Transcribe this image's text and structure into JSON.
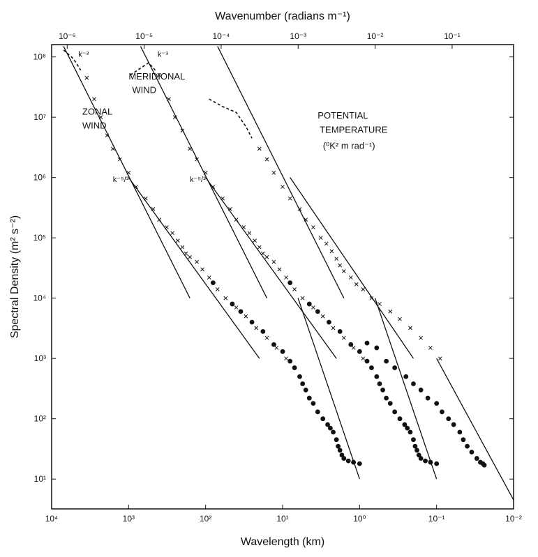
{
  "chart_data": {
    "type": "scatter",
    "xlabel": "Wavelength (km)",
    "ylabel": "Spectral Density (m² s⁻²)",
    "top_xlabel": "Wavenumber (radians m⁻¹)",
    "x_scale": "log",
    "y_scale": "log",
    "xlim": [
      10000,
      0.01
    ],
    "ylim": [
      3.2,
      160000000
    ],
    "x_ticks": [
      {
        "value": 10000,
        "label": "10⁴"
      },
      {
        "value": 1000,
        "label": "10³"
      },
      {
        "value": 100,
        "label": "10²"
      },
      {
        "value": 10,
        "label": "10¹"
      },
      {
        "value": 1,
        "label": "10⁰"
      },
      {
        "value": 0.1,
        "label": "10⁻¹"
      },
      {
        "value": 0.01,
        "label": "10⁻²"
      }
    ],
    "top_ticks": [
      {
        "value": 1e-06,
        "label": "10⁻⁶"
      },
      {
        "value": 1e-05,
        "label": "10⁻⁵"
      },
      {
        "value": 0.0001,
        "label": "10⁻⁴"
      },
      {
        "value": 0.001,
        "label": "10⁻³"
      },
      {
        "value": 0.01,
        "label": "10⁻²"
      },
      {
        "value": 0.1,
        "label": "10⁻¹"
      }
    ],
    "y_ticks": [
      {
        "value": 100000000,
        "label": "10⁸"
      },
      {
        "value": 10000000,
        "label": "10⁷"
      },
      {
        "value": 1000000,
        "label": "10⁶"
      },
      {
        "value": 100000,
        "label": "10⁵"
      },
      {
        "value": 10000,
        "label": "10⁴"
      },
      {
        "value": 1000,
        "label": "10³"
      },
      {
        "value": 100,
        "label": "10²"
      },
      {
        "value": 10,
        "label": "10¹"
      }
    ],
    "reference_lines": [
      {
        "label": "k⁻³",
        "points": [
          [
            7000,
            150000000
          ],
          [
            160,
            10000
          ]
        ]
      },
      {
        "label": "k⁻⁵/³",
        "points": [
          [
            1000,
            1000000
          ],
          [
            20,
            1000
          ]
        ]
      },
      {
        "label": "k⁻³",
        "points": [
          [
            700,
            150000000
          ],
          [
            16,
            10000
          ]
        ]
      },
      {
        "label": "k⁻⁵/³",
        "points": [
          [
            100,
            1000000
          ],
          [
            2,
            1000
          ]
        ]
      },
      {
        "label": "",
        "points": [
          [
            70,
            150000000
          ],
          [
            1.6,
            10000
          ]
        ]
      },
      {
        "label": "",
        "points": [
          [
            8,
            1000000
          ],
          [
            0.2,
            1000
          ]
        ]
      },
      {
        "label": "",
        "points": [
          [
            6.3,
            10000
          ],
          [
            1,
            10
          ]
        ]
      },
      {
        "label": "",
        "points": [
          [
            0.63,
            10000
          ],
          [
            0.1,
            10
          ]
        ]
      },
      {
        "label": "",
        "points": [
          [
            0.1,
            1000
          ],
          [
            0.01,
            4.5
          ]
        ]
      }
    ],
    "series": [
      {
        "name": "ZONAL WIND",
        "dashed": [
          [
            7000,
            130000000
          ],
          [
            5500,
            100000000
          ],
          [
            4800,
            80000000
          ],
          [
            4200,
            60000000
          ]
        ],
        "crosses": [
          [
            3500,
            45000000
          ],
          [
            2800,
            20000000
          ],
          [
            2300,
            10000000
          ],
          [
            1900,
            5000000
          ],
          [
            1600,
            3000000
          ],
          [
            1300,
            2000000
          ],
          [
            1000,
            1200000
          ],
          [
            800,
            700000
          ],
          [
            600,
            450000
          ],
          [
            480,
            300000
          ],
          [
            400,
            200000
          ],
          [
            320,
            150000
          ],
          [
            270,
            120000
          ],
          [
            230,
            90000
          ],
          [
            200,
            70000
          ],
          [
            180,
            55000
          ],
          [
            160,
            48000
          ],
          [
            130,
            40000
          ],
          [
            110,
            30000
          ],
          [
            90,
            22000
          ],
          [
            70,
            14000
          ],
          [
            55,
            10000
          ],
          [
            40,
            7000
          ],
          [
            30,
            5000
          ],
          [
            22,
            3200
          ],
          [
            16,
            2200
          ],
          [
            12,
            1500
          ],
          [
            9,
            1000
          ]
        ],
        "dots": [
          [
            80,
            18000
          ],
          [
            45,
            8000
          ],
          [
            35,
            6000
          ],
          [
            25,
            4000
          ],
          [
            18,
            2800
          ],
          [
            13,
            1700
          ],
          [
            10,
            1300
          ],
          [
            8,
            900
          ],
          [
            7,
            700
          ],
          [
            6,
            500
          ],
          [
            5.5,
            380
          ],
          [
            5,
            300
          ],
          [
            4.5,
            220
          ],
          [
            4,
            180
          ],
          [
            3.5,
            130
          ],
          [
            3,
            100
          ],
          [
            2.6,
            80
          ],
          [
            2.4,
            70
          ],
          [
            2.2,
            60
          ],
          [
            2,
            45
          ],
          [
            1.9,
            35
          ],
          [
            1.8,
            30
          ],
          [
            1.7,
            25
          ],
          [
            1.6,
            22
          ],
          [
            1.4,
            20
          ],
          [
            1.2,
            19
          ],
          [
            1,
            18
          ]
        ]
      },
      {
        "name": "MERIDIONAL WIND",
        "dashed": [
          [
            950,
            50000000
          ],
          [
            700,
            65000000
          ],
          [
            550,
            80000000
          ],
          [
            450,
            60000000
          ]
        ],
        "crosses": [
          [
            400,
            50000000
          ],
          [
            300,
            20000000
          ],
          [
            250,
            10000000
          ],
          [
            200,
            6000000
          ],
          [
            160,
            3000000
          ],
          [
            130,
            2000000
          ],
          [
            100,
            1200000
          ],
          [
            80,
            700000
          ],
          [
            60,
            450000
          ],
          [
            48,
            300000
          ],
          [
            40,
            200000
          ],
          [
            32,
            150000
          ],
          [
            27,
            120000
          ],
          [
            23,
            90000
          ],
          [
            20,
            70000
          ],
          [
            18,
            55000
          ],
          [
            16,
            48000
          ],
          [
            13,
            40000
          ],
          [
            11,
            30000
          ],
          [
            9,
            22000
          ],
          [
            7,
            14000
          ],
          [
            5.5,
            10000
          ],
          [
            4,
            7000
          ],
          [
            3,
            5000
          ],
          [
            2.2,
            3200
          ],
          [
            1.6,
            2200
          ],
          [
            1.2,
            1500
          ],
          [
            0.9,
            1000
          ]
        ],
        "dots": [
          [
            8,
            18000
          ],
          [
            4.5,
            8000
          ],
          [
            3.5,
            6000
          ],
          [
            2.5,
            4000
          ],
          [
            1.8,
            2800
          ],
          [
            1.3,
            1700
          ],
          [
            1,
            1300
          ],
          [
            0.8,
            900
          ],
          [
            0.7,
            700
          ],
          [
            0.6,
            500
          ],
          [
            0.55,
            380
          ],
          [
            0.5,
            300
          ],
          [
            0.45,
            220
          ],
          [
            0.4,
            180
          ],
          [
            0.35,
            130
          ],
          [
            0.3,
            100
          ],
          [
            0.26,
            80
          ],
          [
            0.24,
            70
          ],
          [
            0.22,
            60
          ],
          [
            0.2,
            45
          ],
          [
            0.19,
            35
          ],
          [
            0.18,
            30
          ],
          [
            0.17,
            25
          ],
          [
            0.16,
            22
          ],
          [
            0.14,
            20
          ],
          [
            0.12,
            19
          ],
          [
            0.1,
            18
          ]
        ]
      },
      {
        "name": "POTENTIAL TEMPERATURE",
        "dashed": [
          [
            90,
            20000000
          ],
          [
            60,
            15000000
          ],
          [
            40,
            12000000
          ],
          [
            30,
            7000000
          ],
          [
            25,
            4500000
          ]
        ],
        "crosses": [
          [
            20,
            3000000
          ],
          [
            16,
            2000000
          ],
          [
            13,
            1200000
          ],
          [
            10,
            700000
          ],
          [
            8,
            450000
          ],
          [
            6,
            300000
          ],
          [
            5,
            200000
          ],
          [
            4,
            150000
          ],
          [
            3.2,
            100000
          ],
          [
            2.7,
            80000
          ],
          [
            2.3,
            60000
          ],
          [
            2,
            45000
          ],
          [
            1.8,
            35000
          ],
          [
            1.6,
            28000
          ],
          [
            1.3,
            22000
          ],
          [
            1.1,
            17000
          ],
          [
            0.9,
            14000
          ],
          [
            0.7,
            10000
          ],
          [
            0.55,
            8000
          ],
          [
            0.4,
            6000
          ],
          [
            0.3,
            4500
          ],
          [
            0.22,
            3200
          ],
          [
            0.16,
            2200
          ],
          [
            0.12,
            1500
          ],
          [
            0.09,
            1000
          ]
        ],
        "dots": [
          [
            0.8,
            1800
          ],
          [
            0.6,
            1500
          ],
          [
            0.45,
            900
          ],
          [
            0.35,
            700
          ],
          [
            0.25,
            500
          ],
          [
            0.2,
            380
          ],
          [
            0.16,
            300
          ],
          [
            0.13,
            220
          ],
          [
            0.1,
            180
          ],
          [
            0.085,
            130
          ],
          [
            0.07,
            100
          ],
          [
            0.06,
            80
          ],
          [
            0.05,
            60
          ],
          [
            0.045,
            45
          ],
          [
            0.04,
            35
          ],
          [
            0.035,
            28
          ],
          [
            0.03,
            22
          ],
          [
            0.027,
            19
          ],
          [
            0.025,
            18
          ],
          [
            0.024,
            17
          ]
        ]
      }
    ],
    "annotations": [
      {
        "key": "zonal1",
        "text": "ZONAL",
        "x": 4000,
        "y": 11000000
      },
      {
        "key": "zonal2",
        "text": "WIND",
        "x": 4000,
        "y": 6500000
      },
      {
        "key": "merid1",
        "text": "MERIDIONAL",
        "x": 1000,
        "y": 42000000
      },
      {
        "key": "merid2",
        "text": "WIND",
        "x": 900,
        "y": 25000000
      },
      {
        "key": "pt1",
        "text": "POTENTIAL",
        "x": 3.5,
        "y": 9500000
      },
      {
        "key": "pt2",
        "text": "TEMPERATURE",
        "x": 3.3,
        "y": 5500000
      },
      {
        "key": "pt3",
        "text": "(⁰K² m rad⁻¹)",
        "x": 3,
        "y": 3000000
      }
    ],
    "line_labels": [
      {
        "text": "k⁻³",
        "x": 4500,
        "y": 100000000
      },
      {
        "text": "k⁻⁵/³",
        "x": 1600,
        "y": 850000
      },
      {
        "text": "k⁻³",
        "x": 420,
        "y": 100000000
      },
      {
        "text": "k⁻⁵/³",
        "x": 160,
        "y": 850000
      }
    ],
    "grid": false
  }
}
